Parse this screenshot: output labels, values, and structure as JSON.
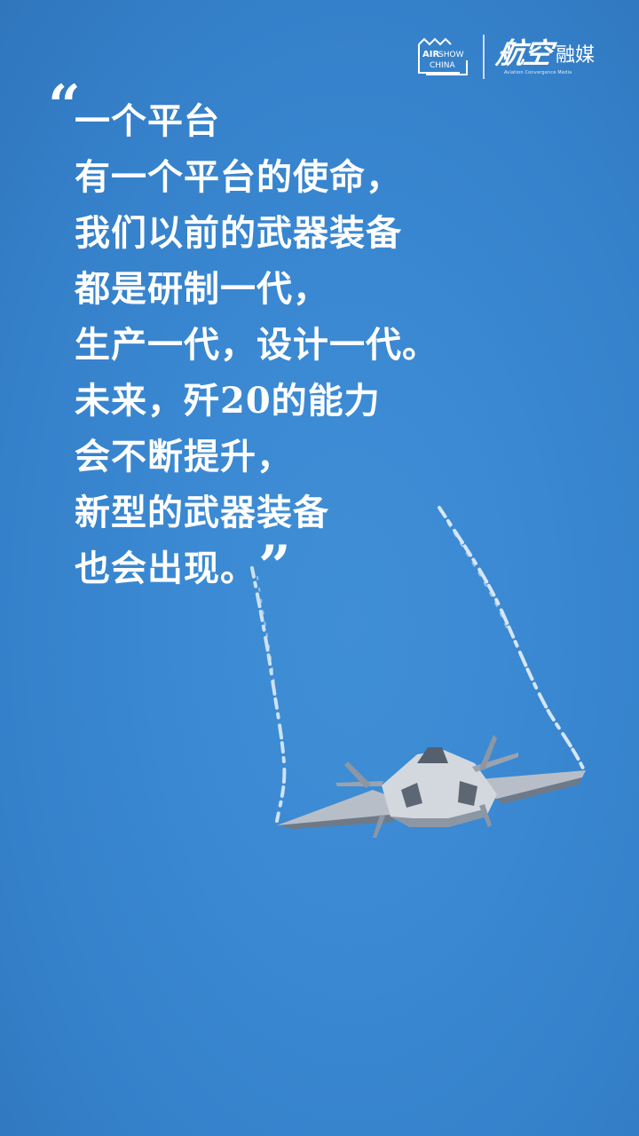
{
  "logos": {
    "airshow": {
      "line1": "AIR",
      "line2": "SHOW",
      "line3": "CHINA"
    },
    "hangkong": {
      "script": "航空",
      "media": "融媒",
      "subtitle": "Aviation Convergence Media"
    }
  },
  "quote": {
    "open_mark": "“",
    "close_mark": "”",
    "lines": [
      "一个平台",
      "有一个平台的使命，",
      "我们以前的武器装备",
      "都是研制一代，",
      "生产一代，设计一代。",
      "未来，歼20的能力",
      "会不断提升，",
      "新型的武器装备",
      "也会出现。"
    ]
  },
  "colors": {
    "sky": "#3a88d2",
    "text": "#ffffff",
    "jet_body": "#c9ced6",
    "jet_shadow": "#6f7a88",
    "contrail": "#e8f1fb"
  }
}
